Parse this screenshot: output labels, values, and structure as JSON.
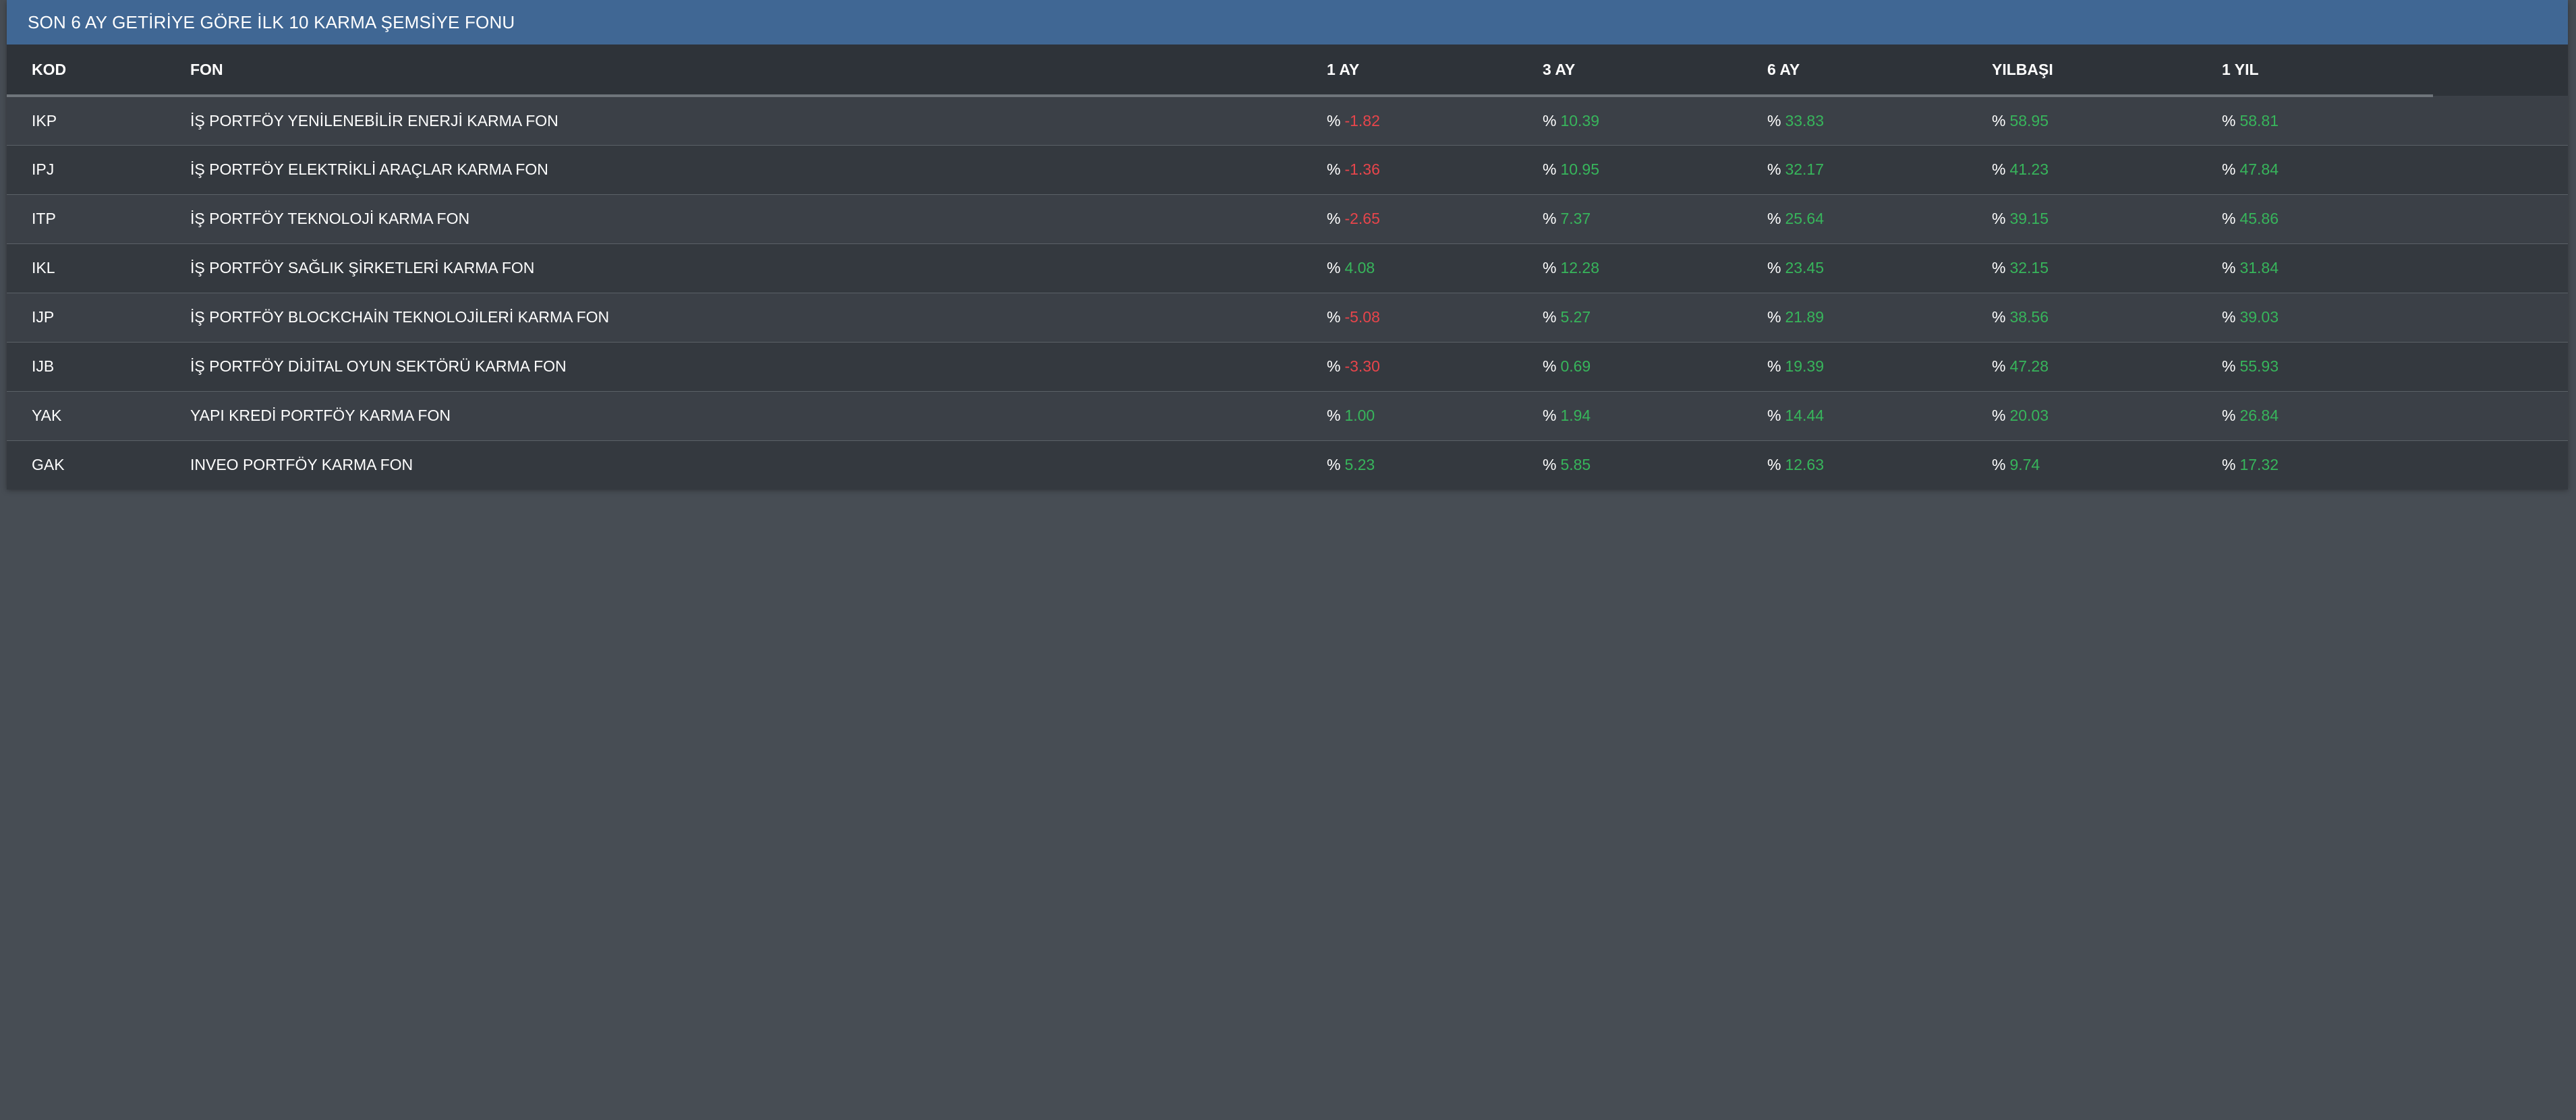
{
  "panel": {
    "title": "SON 6 AY GETİRİYE GÖRE İLK 10 KARMA ŞEMSİYE FONU"
  },
  "columns": [
    "KOD",
    "FON",
    "1 AY",
    "3 AY",
    "6 AY",
    "YILBAŞI",
    "1 YIL"
  ],
  "percent_symbol": "%",
  "colors": {
    "header_bar": "#406794",
    "positive": "#37b55b",
    "negative": "#e8454b",
    "background": "#474d54"
  },
  "rows": [
    {
      "kod": "IKP",
      "fon": "İŞ PORTFÖY YENİLENEBİLİR ENERJİ KARMA FON",
      "ay1": "-1.82",
      "ay3": "10.39",
      "ay6": "33.83",
      "ytd": "58.95",
      "yil1": "58.81"
    },
    {
      "kod": "IPJ",
      "fon": "İŞ PORTFÖY ELEKTRİKLİ ARAÇLAR KARMA FON",
      "ay1": "-1.36",
      "ay3": "10.95",
      "ay6": "32.17",
      "ytd": "41.23",
      "yil1": "47.84"
    },
    {
      "kod": "ITP",
      "fon": "İŞ PORTFÖY TEKNOLOJİ KARMA FON",
      "ay1": "-2.65",
      "ay3": "7.37",
      "ay6": "25.64",
      "ytd": "39.15",
      "yil1": "45.86"
    },
    {
      "kod": "IKL",
      "fon": "İŞ PORTFÖY SAĞLIK ŞİRKETLERİ KARMA FON",
      "ay1": "4.08",
      "ay3": "12.28",
      "ay6": "23.45",
      "ytd": "32.15",
      "yil1": "31.84"
    },
    {
      "kod": "IJP",
      "fon": "İŞ PORTFÖY BLOCKCHAİN TEKNOLOJİLERİ KARMA FON",
      "ay1": "-5.08",
      "ay3": "5.27",
      "ay6": "21.89",
      "ytd": "38.56",
      "yil1": "39.03"
    },
    {
      "kod": "IJB",
      "fon": "İŞ PORTFÖY DİJİTAL OYUN SEKTÖRÜ KARMA FON",
      "ay1": "-3.30",
      "ay3": "0.69",
      "ay6": "19.39",
      "ytd": "47.28",
      "yil1": "55.93"
    },
    {
      "kod": "YAK",
      "fon": "YAPI KREDİ PORTFÖY KARMA FON",
      "ay1": "1.00",
      "ay3": "1.94",
      "ay6": "14.44",
      "ytd": "20.03",
      "yil1": "26.84"
    },
    {
      "kod": "GAK",
      "fon": "INVEO PORTFÖY KARMA FON",
      "ay1": "5.23",
      "ay3": "5.85",
      "ay6": "12.63",
      "ytd": "9.74",
      "yil1": "17.32"
    }
  ]
}
